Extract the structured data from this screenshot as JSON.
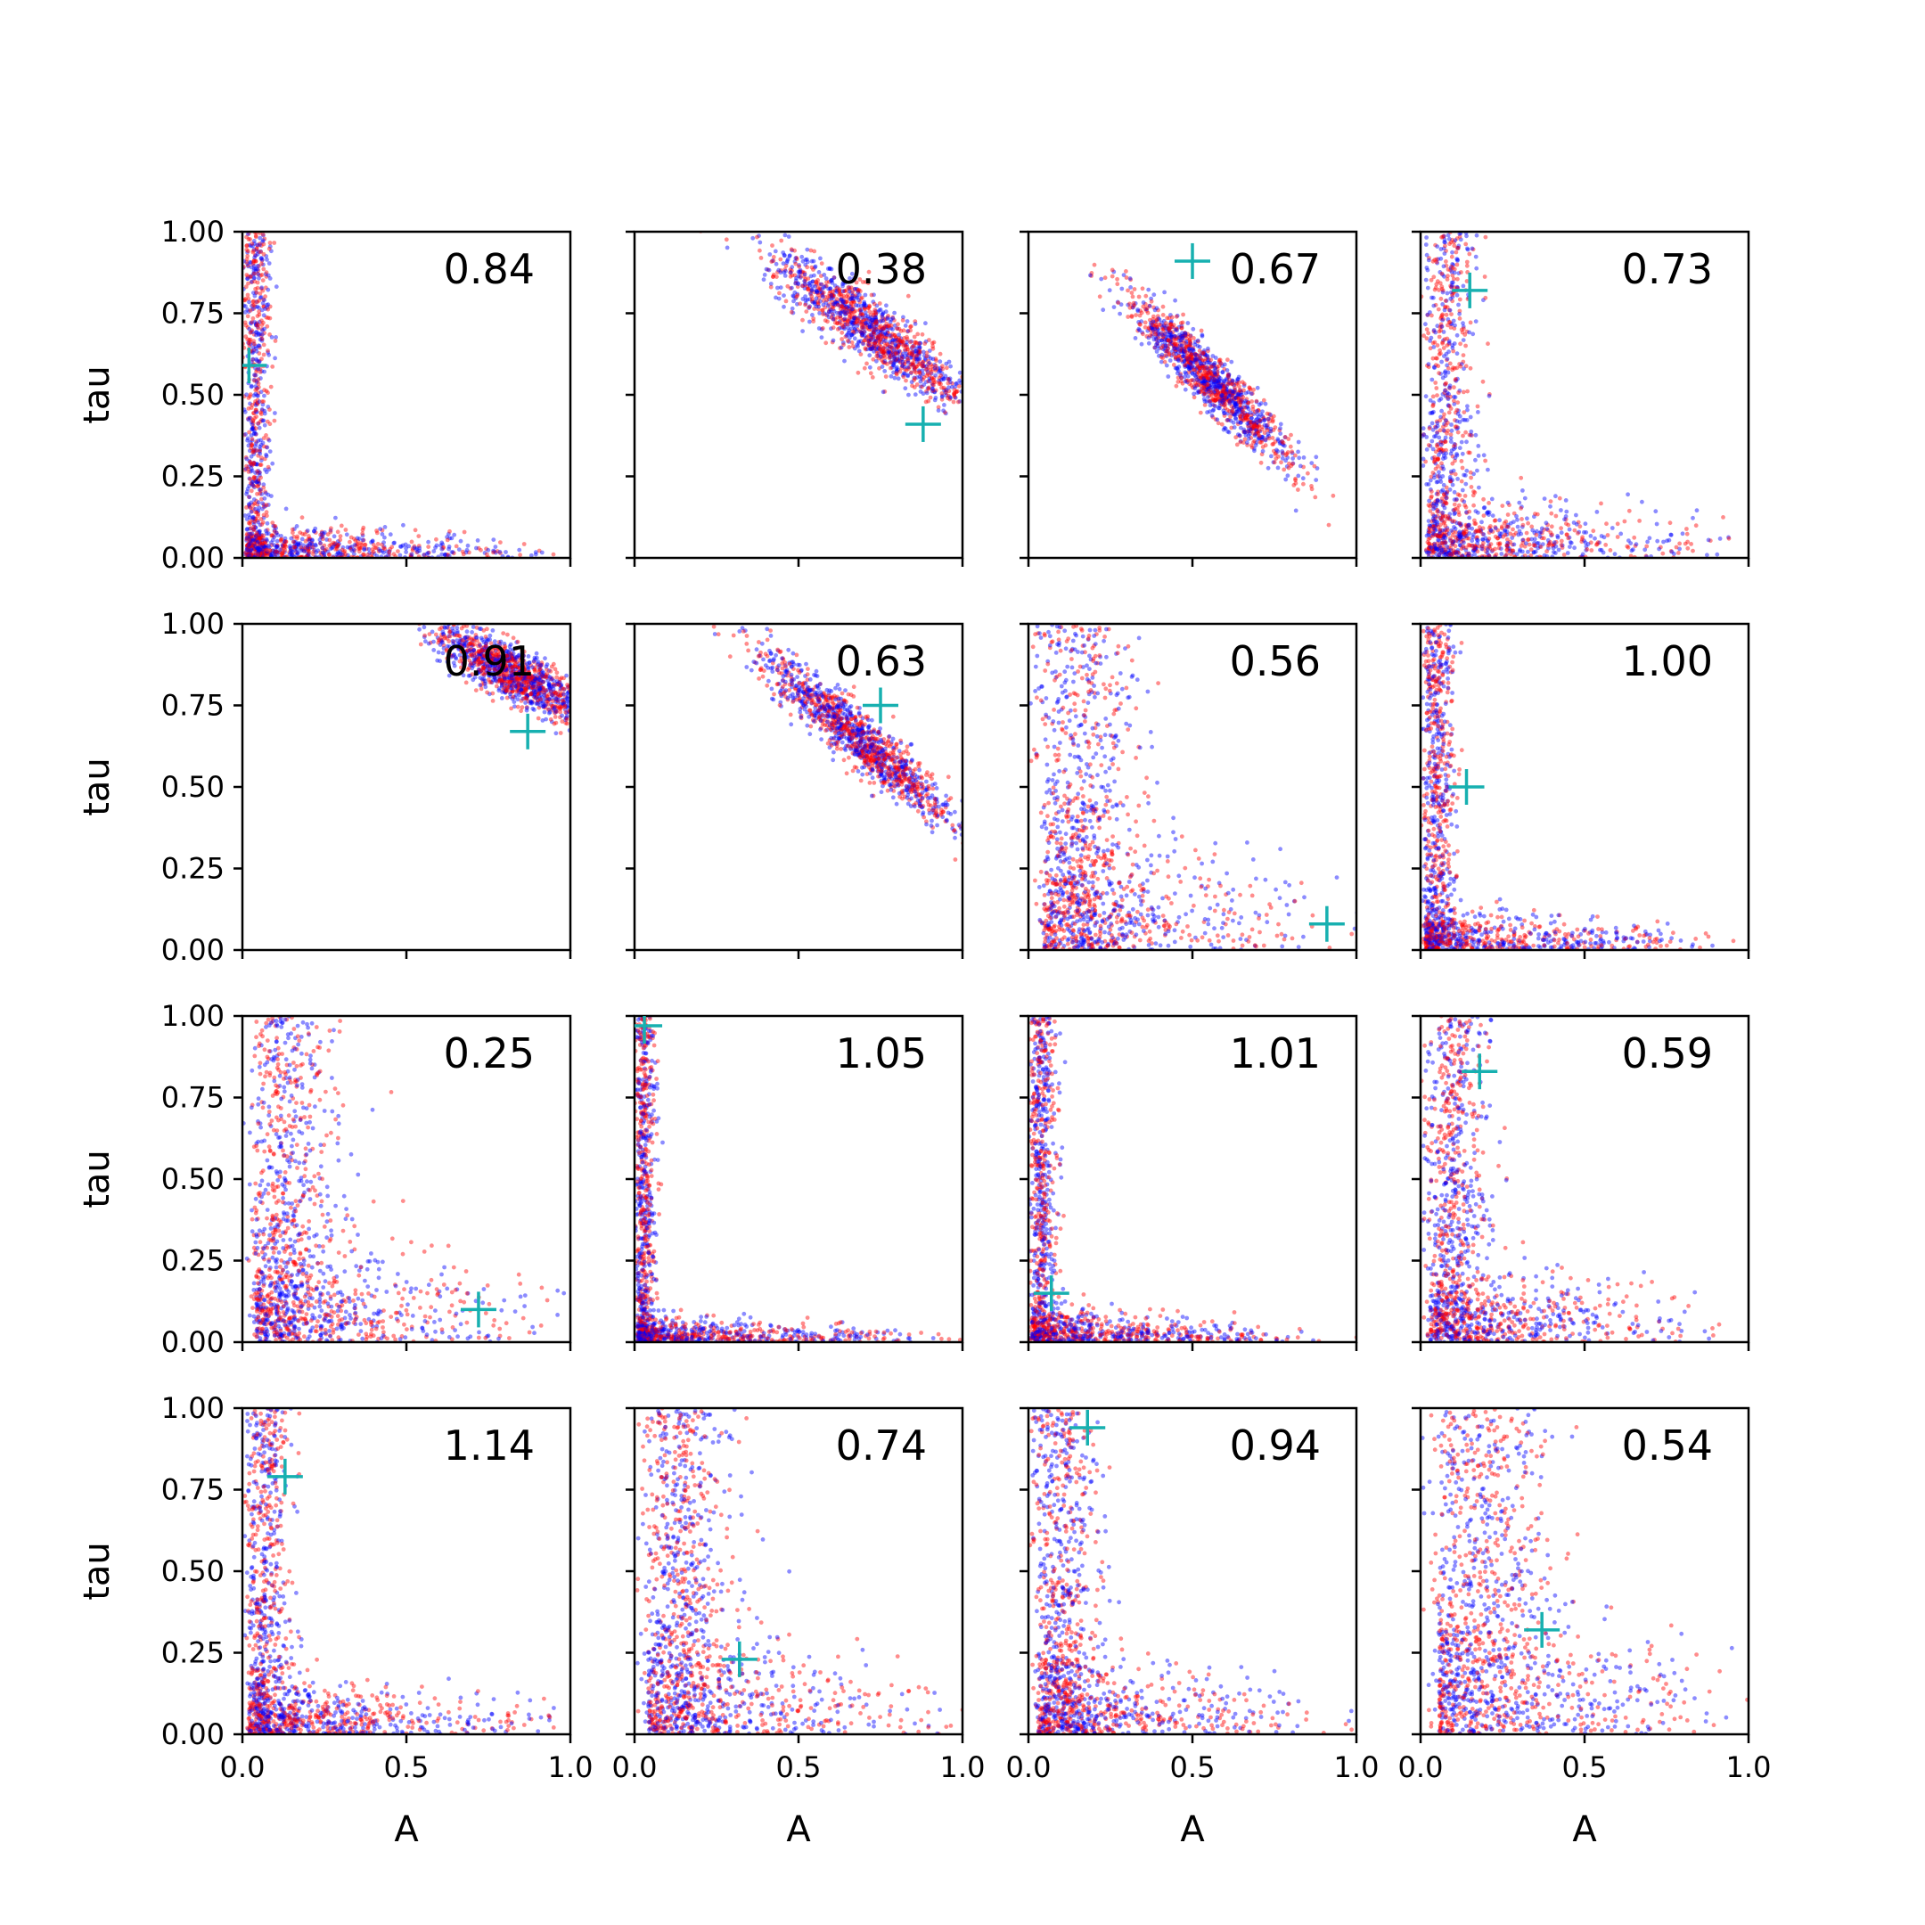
{
  "chart_data": {
    "type": "scatter",
    "layout": {
      "rows": 4,
      "cols": 4
    },
    "xlabel": "A",
    "ylabel": "tau",
    "xlim": [
      0,
      1
    ],
    "ylim": [
      0,
      1
    ],
    "x_ticks": [
      "0.0",
      "0.5",
      "1.0"
    ],
    "y_ticks": [
      "0.00",
      "0.25",
      "0.50",
      "0.75",
      "1.00"
    ],
    "grid": false,
    "series_colors": {
      "first": "#0000ff",
      "second": "#ff0000",
      "marker": "#17b0b0"
    },
    "panels": [
      {
        "label": "0.84",
        "marker": [
          0.02,
          0.59
        ]
      },
      {
        "label": "0.38",
        "marker": [
          0.88,
          0.41
        ]
      },
      {
        "label": "0.67",
        "marker": [
          0.5,
          0.91
        ]
      },
      {
        "label": "0.73",
        "marker": [
          0.15,
          0.82
        ]
      },
      {
        "label": "0.91",
        "marker": [
          0.87,
          0.67
        ]
      },
      {
        "label": "0.63",
        "marker": [
          0.75,
          0.75
        ]
      },
      {
        "label": "0.56",
        "marker": [
          0.91,
          0.08
        ]
      },
      {
        "label": "1.00",
        "marker": [
          0.14,
          0.5
        ]
      },
      {
        "label": "0.25",
        "marker": [
          0.72,
          0.1
        ]
      },
      {
        "label": "1.05",
        "marker": [
          0.03,
          0.97
        ]
      },
      {
        "label": "1.01",
        "marker": [
          0.07,
          0.15
        ]
      },
      {
        "label": "0.59",
        "marker": [
          0.18,
          0.83
        ]
      },
      {
        "label": "1.14",
        "marker": [
          0.13,
          0.79
        ]
      },
      {
        "label": "0.74",
        "marker": [
          0.32,
          0.23
        ]
      },
      {
        "label": "0.94",
        "marker": [
          0.18,
          0.94
        ]
      },
      {
        "label": "0.54",
        "marker": [
          0.37,
          0.32
        ]
      }
    ]
  }
}
